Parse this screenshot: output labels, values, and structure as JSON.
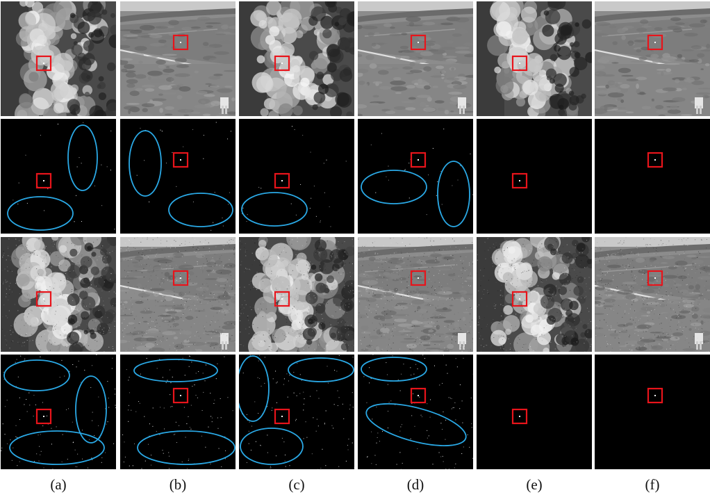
{
  "figure": {
    "columns": [
      {
        "id": "a",
        "label": "(a)",
        "scene": "cloud"
      },
      {
        "id": "b",
        "label": "(b)",
        "scene": "field"
      },
      {
        "id": "c",
        "label": "(c)",
        "scene": "cloud"
      },
      {
        "id": "d",
        "label": "(d)",
        "scene": "field"
      },
      {
        "id": "e",
        "label": "(e)",
        "scene": "cloud"
      },
      {
        "id": "f",
        "label": "(f)",
        "scene": "field"
      }
    ],
    "rows": [
      {
        "id": "row-1",
        "kind": "infrared-image",
        "noise": "low"
      },
      {
        "id": "row-2",
        "kind": "detection-result"
      },
      {
        "id": "row-3",
        "kind": "infrared-image",
        "noise": "high"
      },
      {
        "id": "row-4",
        "kind": "detection-result"
      }
    ],
    "colors": {
      "target_box": "#e8141b",
      "clutter_ellipse": "#2aa9e6",
      "background": "#ffffff",
      "result_background": "#000000"
    }
  }
}
